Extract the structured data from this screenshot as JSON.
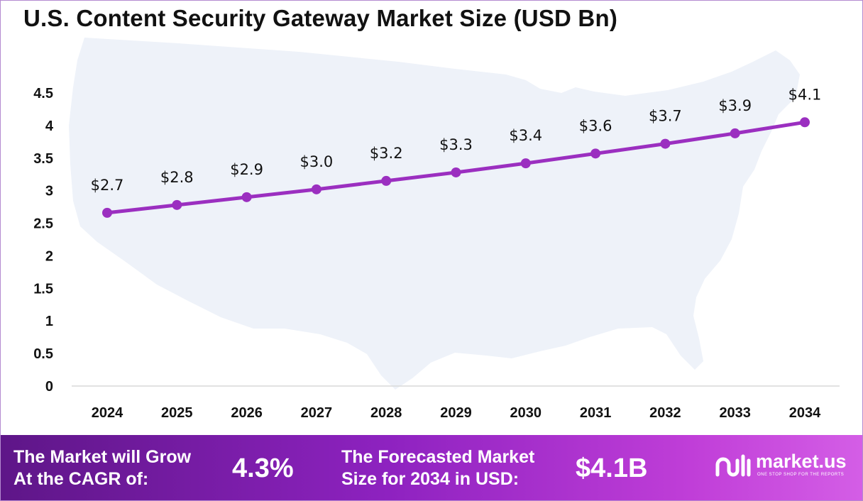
{
  "title": "U.S. Content Security Gateway Market Size (USD Bn)",
  "chart_data": {
    "type": "line",
    "categories": [
      "2024",
      "2025",
      "2026",
      "2027",
      "2028",
      "2029",
      "2030",
      "2031",
      "2032",
      "2033",
      "2034"
    ],
    "values": [
      2.66,
      2.78,
      2.9,
      3.02,
      3.15,
      3.28,
      3.42,
      3.57,
      3.72,
      3.88,
      4.05
    ],
    "data_labels": [
      "$2.7",
      "$2.8",
      "$2.9",
      "$3.0",
      "$3.2",
      "$3.3",
      "$3.4",
      "$3.6",
      "$3.7",
      "$3.9",
      "$4.1"
    ],
    "yticks": [
      "0",
      "0.5",
      "1",
      "1.5",
      "2",
      "2.5",
      "3",
      "3.5",
      "4",
      "4.5"
    ],
    "ylim": [
      0,
      4.5
    ],
    "grid": false,
    "line_color": "#9b2fc0",
    "background_map": "United States silhouette"
  },
  "footer": {
    "cagr_label": [
      "The Market will Grow",
      "At the CAGR of:"
    ],
    "cagr_value": "4.3%",
    "forecast_label": [
      "The Forecasted Market",
      "Size for 2034 in USD:"
    ],
    "forecast_value": "$4.1B",
    "logo_text": "market.us",
    "logo_tagline": "ONE STOP SHOP FOR THE REPORTS",
    "logo_icon": "market-us-logo-icon"
  }
}
